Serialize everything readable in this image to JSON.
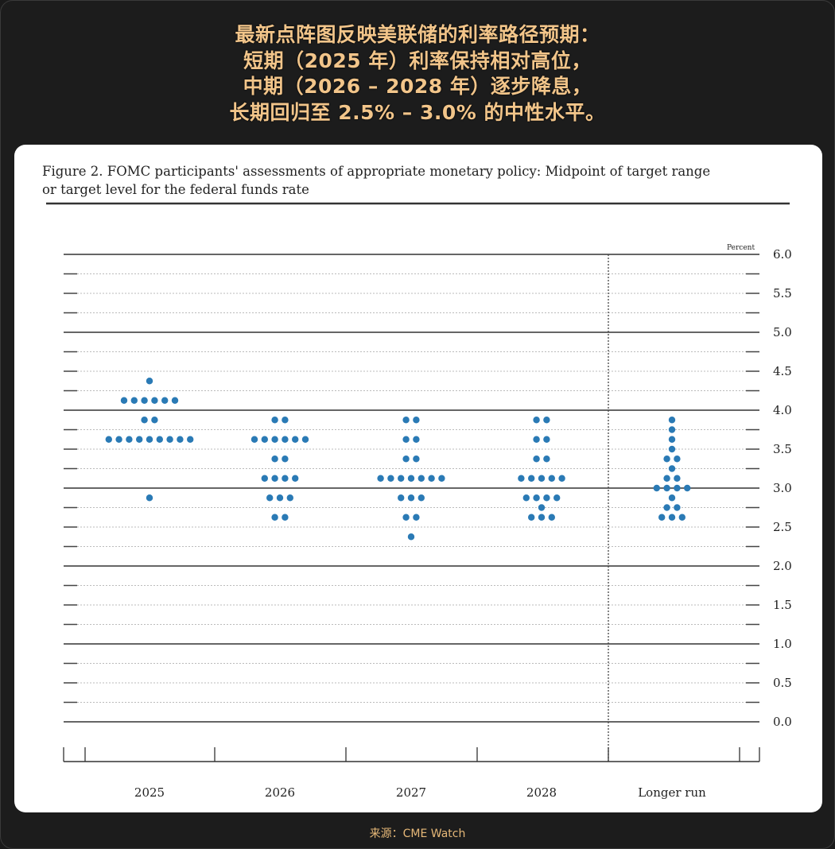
{
  "headline": {
    "lines": [
      "最新点阵图反映美联储的利率路径预期：",
      "短期（2025 年）利率保持相对高位，",
      "中期（2026 – 2028 年）逐步降息，",
      "长期回归至 2.5% – 3.0% 的中性水平。"
    ]
  },
  "footer": {
    "source": "来源：CME Watch"
  },
  "colors": {
    "background": "#1c1c1c",
    "headline": "#f2c58a",
    "dot": "#2a7ab5",
    "card": "#ffffff"
  },
  "chart_data": {
    "type": "scatter",
    "subtype": "dot-plot",
    "title": "Figure 2. FOMC participants' assessments of appropriate monetary policy: Midpoint of target range or target level for the federal funds rate",
    "title_lines": [
      "Figure 2. FOMC participants' assessments of appropriate monetary policy: Midpoint of target range",
      "or target level for the federal funds rate"
    ],
    "ylabel": "Percent",
    "ylim": [
      0,
      6
    ],
    "yticks": [
      "0.0",
      "0.5",
      "1.0",
      "1.5",
      "2.0",
      "2.5",
      "3.0",
      "3.5",
      "4.0",
      "4.5",
      "5.0",
      "5.5",
      "6.0"
    ],
    "grid": "dotted every 0.25, solid every 1.0",
    "categories": [
      "2025",
      "2026",
      "2027",
      "2028",
      "Longer run"
    ],
    "dots": [
      [
        {
          "rate": 4.375,
          "count": 1
        },
        {
          "rate": 4.125,
          "count": 6
        },
        {
          "rate": 3.875,
          "count": 2
        },
        {
          "rate": 3.625,
          "count": 9
        },
        {
          "rate": 2.875,
          "count": 1
        }
      ],
      [
        {
          "rate": 3.875,
          "count": 2
        },
        {
          "rate": 3.625,
          "count": 6
        },
        {
          "rate": 3.375,
          "count": 2
        },
        {
          "rate": 3.125,
          "count": 4
        },
        {
          "rate": 2.875,
          "count": 3
        },
        {
          "rate": 2.625,
          "count": 2
        }
      ],
      [
        {
          "rate": 3.875,
          "count": 2
        },
        {
          "rate": 3.625,
          "count": 2
        },
        {
          "rate": 3.375,
          "count": 2
        },
        {
          "rate": 3.125,
          "count": 7
        },
        {
          "rate": 2.875,
          "count": 3
        },
        {
          "rate": 2.625,
          "count": 2
        },
        {
          "rate": 2.375,
          "count": 1
        }
      ],
      [
        {
          "rate": 3.875,
          "count": 2
        },
        {
          "rate": 3.625,
          "count": 2
        },
        {
          "rate": 3.375,
          "count": 2
        },
        {
          "rate": 3.125,
          "count": 5
        },
        {
          "rate": 2.875,
          "count": 4
        },
        {
          "rate": 2.75,
          "count": 1
        },
        {
          "rate": 2.625,
          "count": 3
        }
      ],
      [
        {
          "rate": 3.875,
          "count": 1
        },
        {
          "rate": 3.75,
          "count": 1
        },
        {
          "rate": 3.625,
          "count": 1
        },
        {
          "rate": 3.5,
          "count": 1
        },
        {
          "rate": 3.375,
          "count": 2
        },
        {
          "rate": 3.25,
          "count": 1
        },
        {
          "rate": 3.125,
          "count": 2
        },
        {
          "rate": 3.0,
          "count": 4
        },
        {
          "rate": 2.875,
          "count": 1
        },
        {
          "rate": 2.75,
          "count": 2
        },
        {
          "rate": 2.625,
          "count": 3
        }
      ]
    ]
  }
}
